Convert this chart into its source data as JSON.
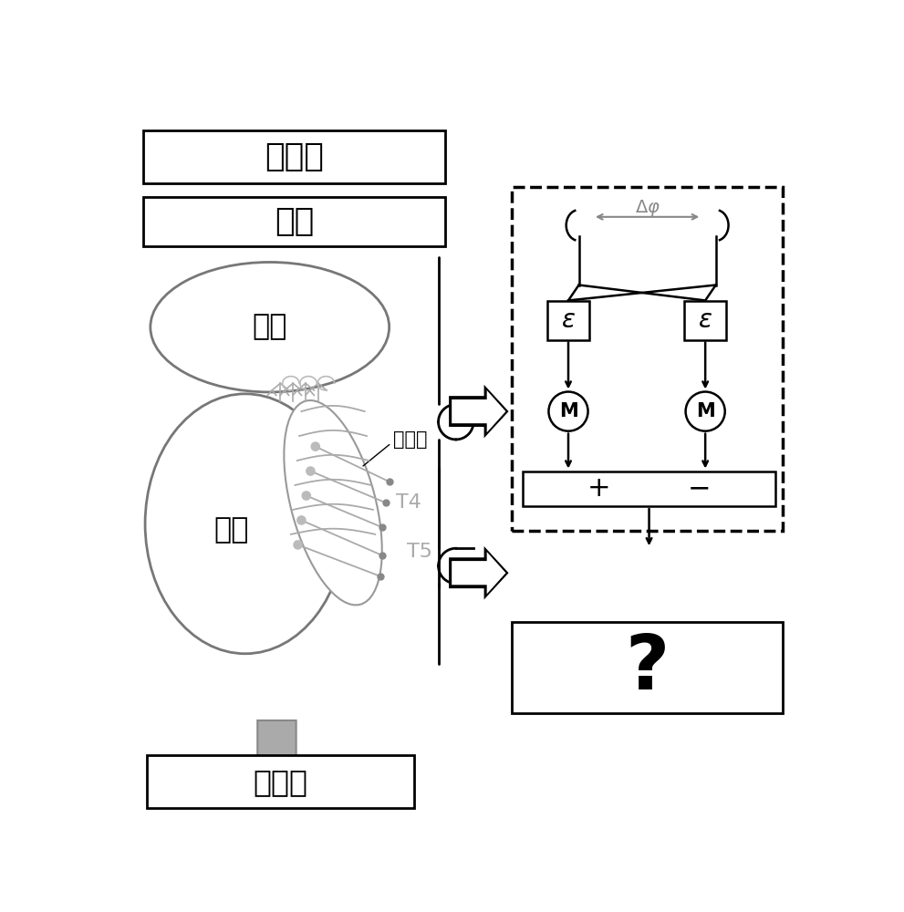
{
  "bg_color": "#ffffff",
  "box1_text": "视网膜",
  "box2_text": "薄板",
  "medulla_text": "髓质",
  "lobula_text": "小叶",
  "lobula_plate_text": "小叶板",
  "T4_text": "T4",
  "T5_text": "T5",
  "central_brain_text": "中央脑",
  "M_text": "M",
  "plus_text": "+",
  "minus_text": "−",
  "question_text": "?"
}
